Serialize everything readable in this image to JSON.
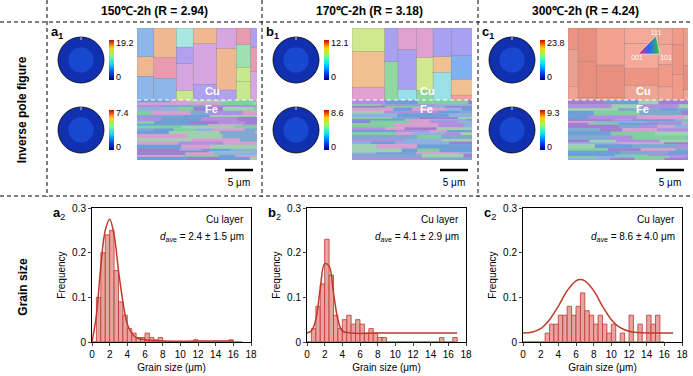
{
  "column_headers": [
    "150℃-2h (R = 2.94)",
    "170℃-2h (R = 3.18)",
    "300℃-2h (R = 4.24)"
  ],
  "row_labels": [
    "Inverse pole figure",
    "Grain size"
  ],
  "ipf_panels": [
    {
      "panel": {
        "letter": "a",
        "sub": "1"
      },
      "pole_figures": [
        {
          "min": 0,
          "max": 19.2
        },
        {
          "min": 0,
          "max": 7.4
        }
      ],
      "layers": [
        "Cu",
        "Fe"
      ],
      "scale_bar": "5 μm"
    },
    {
      "panel": {
        "letter": "b",
        "sub": "1"
      },
      "pole_figures": [
        {
          "min": 0,
          "max": 12.1
        },
        {
          "min": 0,
          "max": 8.6
        }
      ],
      "layers": [
        "Cu",
        "Fe"
      ],
      "scale_bar": "5 μm"
    },
    {
      "panel": {
        "letter": "c",
        "sub": "1"
      },
      "pole_figures": [
        {
          "min": 0,
          "max": 23.8
        },
        {
          "min": 0,
          "max": 9.3
        }
      ],
      "layers": [
        "Cu",
        "Fe"
      ],
      "scale_bar": "5 μm",
      "color_key": [
        "111",
        "001",
        "101"
      ]
    }
  ],
  "chart_data": [
    {
      "type": "histogram",
      "panel": {
        "letter": "a",
        "sub": "2"
      },
      "xlabel": "Grain size (μm)",
      "ylabel": "Frequency",
      "annotation": "Cu layer",
      "stat": {
        "symbol": "d",
        "subscript": "ave",
        "text": " = 2.4 ± 1.5 μm"
      },
      "bins": [
        0,
        0.5,
        1,
        1.5,
        2,
        2.5,
        3,
        3.5,
        4,
        4.5,
        5,
        5.5,
        6,
        6.5,
        7,
        7.5,
        8,
        8.5,
        9,
        9.5,
        10,
        10.5,
        11,
        11.5,
        12,
        12.5,
        13,
        13.5,
        14,
        14.5,
        15,
        15.5,
        16,
        16.5,
        17
      ],
      "counts": [
        0,
        0.1,
        0.2,
        0.24,
        0.25,
        0.16,
        0.09,
        0.06,
        0.03,
        0.02,
        0.01,
        0.01,
        0.02,
        0.01,
        0.005,
        0.01,
        0,
        0,
        0,
        0,
        0,
        0,
        0,
        0.005,
        0,
        0,
        0,
        0,
        0,
        0,
        0,
        0.005,
        0,
        0
      ],
      "color": "#e8a3a3",
      "fit": {
        "x": [
          0,
          0.5,
          1,
          1.5,
          2,
          2.5,
          3,
          3.5,
          4,
          4.5,
          5,
          6,
          8,
          12,
          16
        ],
        "values": [
          0,
          0.06,
          0.17,
          0.25,
          0.275,
          0.24,
          0.16,
          0.09,
          0.04,
          0.02,
          0.01,
          0.005,
          0.002,
          0.002,
          0.002
        ],
        "color": "#c0392b"
      },
      "xlim": [
        0,
        18
      ],
      "xticks": [
        0,
        2,
        4,
        6,
        8,
        10,
        12,
        14,
        16,
        18
      ],
      "ylim": [
        0,
        0.3
      ],
      "yticks": [
        0,
        0.1,
        0.2,
        0.3
      ]
    },
    {
      "type": "histogram",
      "panel": {
        "letter": "b",
        "sub": "2"
      },
      "xlabel": "Grain size (μm)",
      "ylabel": "Frequency",
      "annotation": "Cu layer",
      "stat": {
        "symbol": "d",
        "subscript": "ave",
        "text": " = 4.1 ± 2.9 μm"
      },
      "bins": [
        0,
        0.5,
        1,
        1.5,
        2,
        2.5,
        3,
        3.5,
        4,
        4.5,
        5,
        5.5,
        6,
        6.5,
        7,
        7.5,
        8,
        8.5,
        9,
        9.5,
        10,
        10.5,
        11,
        11.5,
        12,
        12.5,
        13,
        13.5,
        14,
        14.5,
        15,
        15.5,
        16,
        16.5,
        17
      ],
      "counts": [
        0,
        0.03,
        0.08,
        0.13,
        0.23,
        0.15,
        0.06,
        0.03,
        0.05,
        0.06,
        0.04,
        0.05,
        0.04,
        0.02,
        0.03,
        0.02,
        0.01,
        0.01,
        0,
        0,
        0,
        0,
        0,
        0,
        0,
        0,
        0,
        0,
        0,
        0,
        0.01,
        0,
        0,
        0.01
      ],
      "color": "#e8a3a3",
      "fit": {
        "x": [
          0,
          0.5,
          1,
          1.5,
          2,
          2.5,
          3,
          3.5,
          4,
          5,
          8,
          12,
          17
        ],
        "values": [
          0.02,
          0.025,
          0.05,
          0.12,
          0.175,
          0.17,
          0.11,
          0.05,
          0.025,
          0.02,
          0.02,
          0.02,
          0.02
        ],
        "color": "#c0392b"
      },
      "xlim": [
        0,
        18
      ],
      "xticks": [
        0,
        2,
        4,
        6,
        8,
        10,
        12,
        14,
        16,
        18
      ],
      "ylim": [
        0,
        0.3
      ],
      "yticks": [
        0,
        0.1,
        0.2,
        0.3
      ]
    },
    {
      "type": "histogram",
      "panel": {
        "letter": "c",
        "sub": "2"
      },
      "xlabel": "Grain size (μm)",
      "ylabel": "Frequency",
      "annotation": "Cu layer",
      "stat": {
        "symbol": "d",
        "subscript": "ave",
        "text": " = 8.6 ± 4.0 μm"
      },
      "bins": [
        0,
        0.5,
        1,
        1.5,
        2,
        2.5,
        3,
        3.5,
        4,
        4.5,
        5,
        5.5,
        6,
        6.5,
        7,
        7.5,
        8,
        8.5,
        9,
        9.5,
        10,
        10.5,
        11,
        11.5,
        12,
        12.5,
        13,
        13.5,
        14,
        14.5,
        15,
        15.5,
        16
      ],
      "counts": [
        0,
        0,
        0,
        0,
        0,
        0.02,
        0.04,
        0.04,
        0.06,
        0.06,
        0.08,
        0.06,
        0.08,
        0.11,
        0.07,
        0.06,
        0.04,
        0.06,
        0.04,
        0.02,
        0.04,
        0,
        0.02,
        0,
        0.06,
        0,
        0.04,
        0,
        0.06,
        0.04,
        0.06,
        0
      ],
      "color": "#e8a3a3",
      "fit": {
        "x": [
          0,
          1,
          2,
          3,
          4,
          5,
          6,
          6.5,
          7,
          8,
          9,
          10,
          11,
          12,
          13,
          14,
          16,
          17
        ],
        "values": [
          0.02,
          0.022,
          0.03,
          0.05,
          0.08,
          0.115,
          0.137,
          0.14,
          0.137,
          0.115,
          0.08,
          0.05,
          0.032,
          0.024,
          0.021,
          0.02,
          0.02,
          0.02
        ],
        "color": "#c0392b"
      },
      "xlim": [
        0,
        18
      ],
      "xticks": [
        0,
        2,
        4,
        6,
        8,
        10,
        12,
        14,
        16,
        18
      ],
      "ylim": [
        0,
        0.3
      ],
      "yticks": [
        0,
        0.1,
        0.2,
        0.3
      ]
    }
  ]
}
